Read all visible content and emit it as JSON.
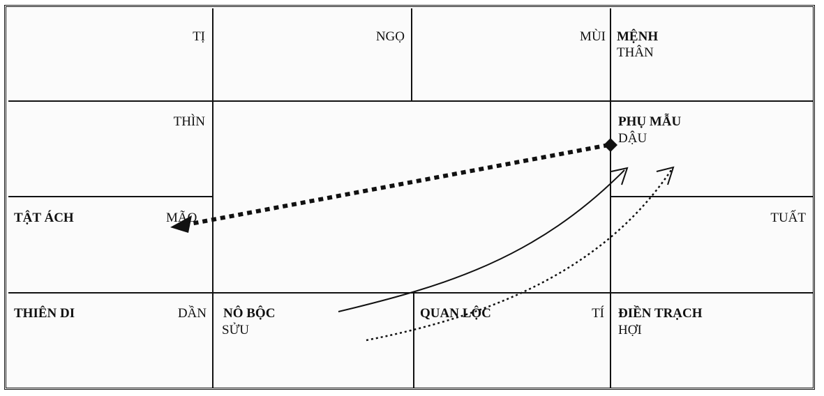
{
  "cells": {
    "ti_top": {
      "branch": "TỊ"
    },
    "ngo": {
      "branch": "NGỌ"
    },
    "mui": {
      "branch": "MÙI"
    },
    "menh": {
      "palace": "MỆNH",
      "branch": "THÂN"
    },
    "thin": {
      "branch": "THÌN"
    },
    "phu_mau": {
      "palace": "PHỤ MẪU",
      "branch": "DẬU"
    },
    "tat_ach": {
      "palace": "TẬT ÁCH",
      "branch": "MÃO"
    },
    "tuat": {
      "branch": "TUẤT"
    },
    "thien_di": {
      "palace": "THIÊN DI",
      "branch": "DẦN"
    },
    "no_boc": {
      "palace": "NÔ BỘC",
      "branch": "SỬU"
    },
    "quan_loc": {
      "palace": "QUAN LỘC",
      "branch": "TÍ"
    },
    "dien_trach": {
      "palace": "ĐIỀN TRẠCH",
      "branch": "HỢI"
    }
  },
  "arrows": [
    {
      "id": "dau-to-mao",
      "style": "thick-dotted"
    },
    {
      "id": "suu-to-dau-solid",
      "style": "solid"
    },
    {
      "id": "suu-to-dau-dotted",
      "style": "thin-dotted"
    }
  ],
  "colors": {
    "ink": "#111111",
    "background": "#fbfbfb"
  }
}
